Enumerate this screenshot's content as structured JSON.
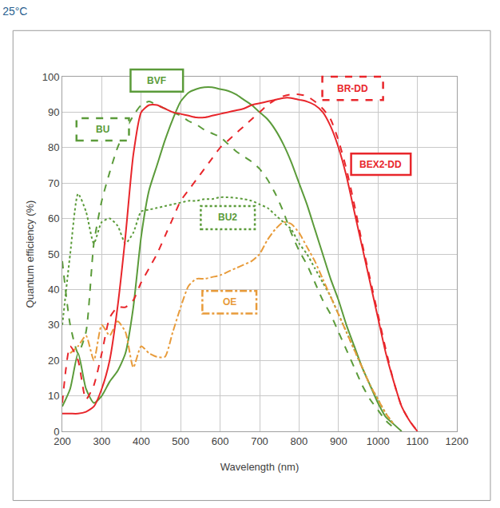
{
  "chart_data": {
    "type": "line",
    "title": "25°C",
    "x_label": "Wavelength (nm)",
    "y_label": "Quantum efficiency (%)",
    "xlim": [
      200,
      1200
    ],
    "xticks": [
      200,
      300,
      400,
      500,
      600,
      700,
      800,
      900,
      1000,
      1100,
      1200
    ],
    "ylim": [
      0,
      100
    ],
    "yticks": [
      0,
      10,
      20,
      30,
      40,
      50,
      60,
      70,
      80,
      90,
      100
    ],
    "grid": true,
    "x": [
      200,
      220,
      240,
      260,
      280,
      300,
      320,
      340,
      360,
      380,
      400,
      420,
      440,
      460,
      480,
      500,
      520,
      540,
      560,
      580,
      600,
      620,
      640,
      660,
      680,
      700,
      720,
      740,
      760,
      780,
      800,
      820,
      840,
      860,
      880,
      900,
      920,
      940,
      960,
      980,
      1000,
      1020,
      1040,
      1060,
      1080,
      1100
    ],
    "series": [
      {
        "name": "BVF",
        "color": "#5b9b3a",
        "line_style": "solid",
        "values": [
          7,
          12,
          22,
          12,
          8,
          10,
          14,
          17,
          22,
          35,
          55,
          68,
          75,
          82,
          88,
          93,
          95.5,
          96.5,
          97,
          97,
          96.5,
          96,
          95,
          93.5,
          92,
          90,
          88,
          85,
          81,
          76,
          70,
          64,
          57,
          50,
          43,
          37,
          30,
          24,
          18,
          13,
          8,
          4,
          2,
          0,
          null,
          null
        ]
      },
      {
        "name": "BU",
        "color": "#5b9b3a",
        "line_style": "dash",
        "values": [
          48,
          30,
          22,
          28,
          53,
          65,
          73,
          80,
          85,
          89,
          92,
          93,
          92,
          91,
          90,
          89,
          87.5,
          86.5,
          85,
          84,
          83,
          81,
          79,
          77.5,
          76,
          74,
          71,
          67,
          62,
          56,
          51,
          47,
          42,
          37,
          33,
          28,
          23,
          18,
          13,
          9,
          6,
          3,
          1,
          null,
          null,
          null
        ]
      },
      {
        "name": "BU2",
        "color": "#5b9b3a",
        "line_style": "dot",
        "values": [
          30,
          50,
          67,
          62,
          53,
          59,
          60,
          58,
          53,
          56,
          62,
          62.5,
          63,
          63.5,
          64,
          64.5,
          65,
          65,
          65.5,
          65.5,
          66,
          66,
          65.8,
          65.5,
          65,
          64,
          63,
          61,
          59,
          57,
          53,
          50,
          46,
          42,
          38,
          33,
          28,
          23,
          18,
          13,
          9,
          5,
          2,
          null,
          null,
          null
        ]
      },
      {
        "name": "OE",
        "color": "#e89b3a",
        "line_style": "dashdot",
        "values": [
          null,
          22,
          24,
          27,
          20,
          30,
          27,
          31,
          28,
          18,
          24,
          22,
          21,
          21,
          28,
          35,
          41,
          43,
          43,
          43.5,
          44,
          45,
          46,
          47,
          48,
          50,
          54,
          57,
          59,
          58.5,
          56,
          52,
          48,
          43,
          38,
          33,
          28,
          23,
          18,
          13,
          9,
          5,
          2,
          null,
          null,
          null
        ]
      },
      {
        "name": "BR-DD",
        "color": "#e8262b",
        "line_style": "dash",
        "values": [
          8,
          24,
          20,
          9,
          13,
          22,
          32,
          35,
          35,
          37,
          42,
          46,
          50,
          55,
          60,
          65,
          68,
          71,
          74,
          77,
          80,
          82,
          84,
          86,
          88,
          90,
          92,
          93.5,
          94.5,
          95,
          95,
          94.5,
          93,
          91,
          88,
          82,
          74,
          64,
          53,
          43,
          33,
          23,
          14,
          7,
          3,
          0
        ]
      },
      {
        "name": "BEX2-DD",
        "color": "#e8262b",
        "line_style": "solid",
        "values": [
          5,
          5,
          5,
          5.5,
          7,
          12,
          20,
          35,
          55,
          78,
          90,
          92,
          92,
          91,
          90,
          89.5,
          89,
          88.5,
          88.5,
          89,
          89.5,
          90,
          90.5,
          91,
          92,
          92.5,
          93,
          93.5,
          94,
          94,
          93.5,
          93,
          92,
          90,
          86,
          80,
          72,
          62,
          52,
          42,
          32,
          22,
          14,
          7,
          3,
          0
        ]
      }
    ]
  }
}
